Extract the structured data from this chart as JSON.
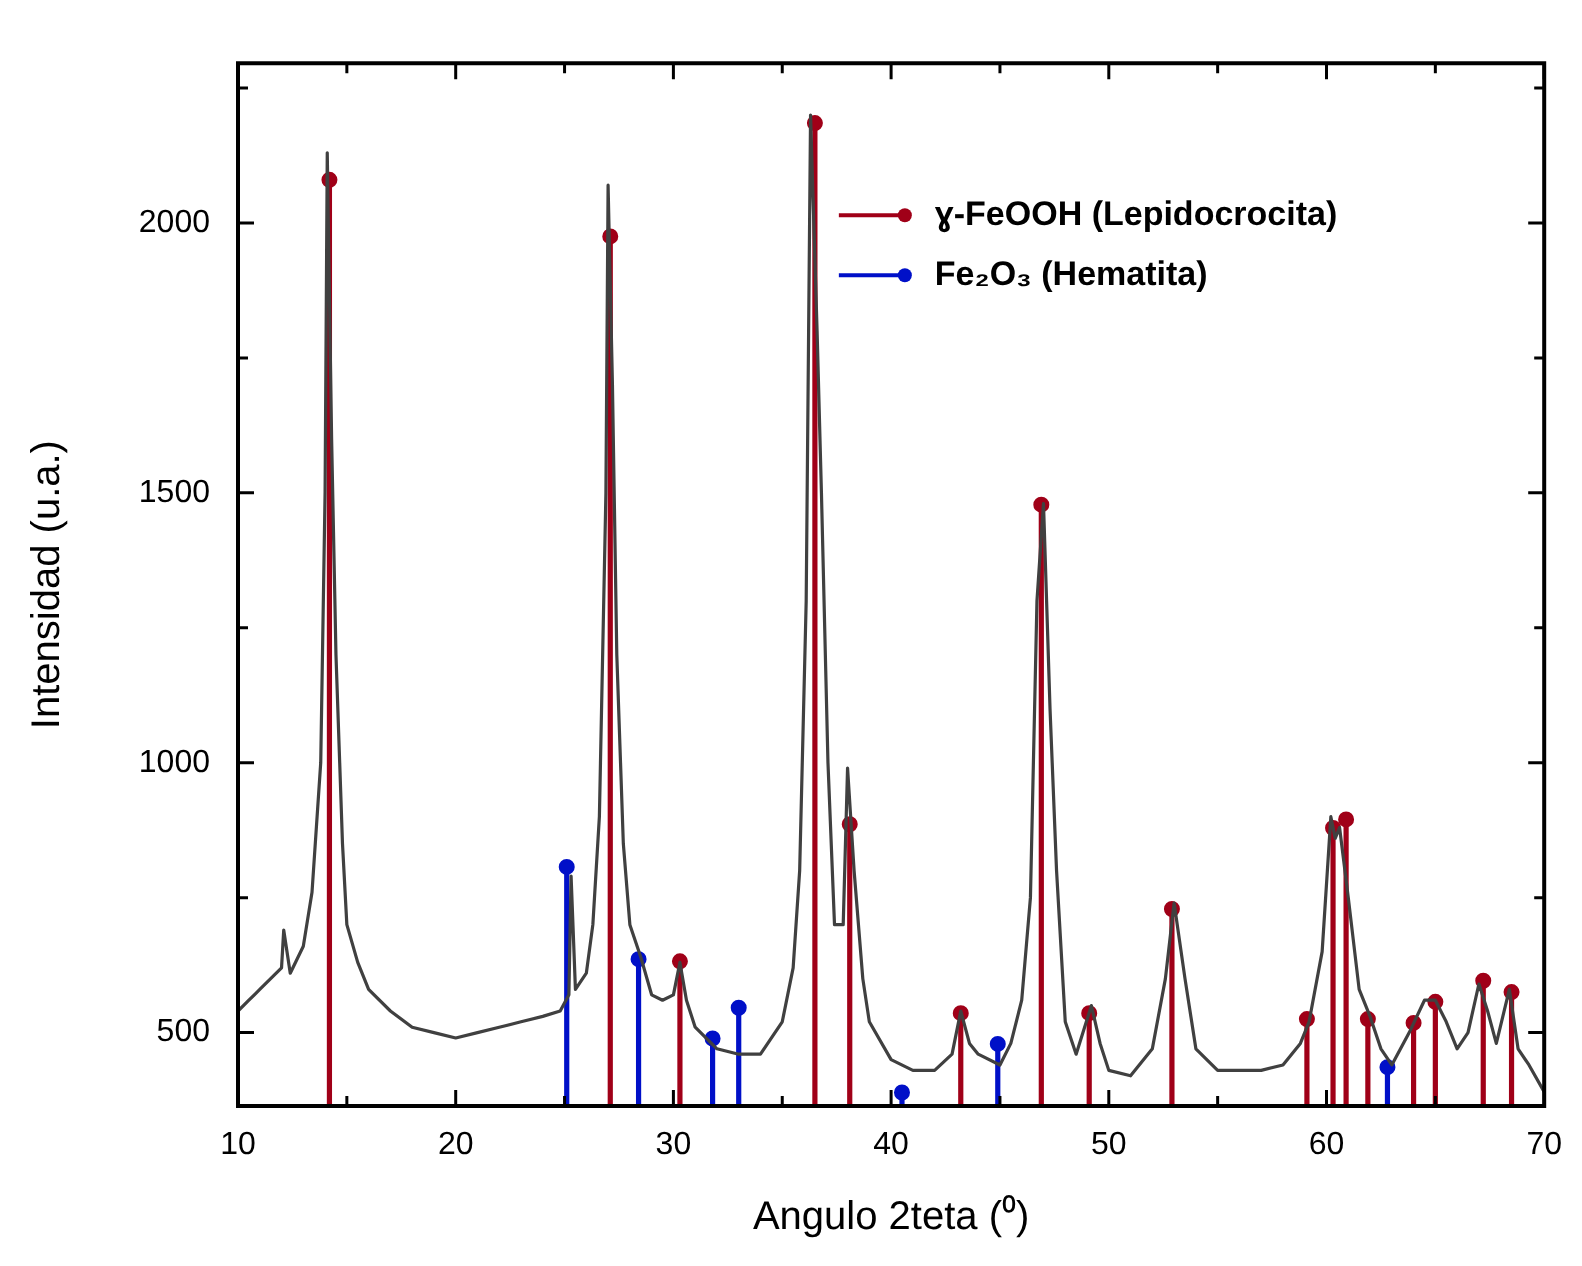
{
  "chart_data": {
    "type": "line",
    "xlabel": "Angulo 2teta (⁰)",
    "ylabel": "Intensidad (u.a.)",
    "xlim": [
      10,
      70
    ],
    "ylim": [
      364,
      2296
    ],
    "xticks": [
      10,
      {
        "value": 15,
        "label": null
      },
      20,
      {
        "value": 25,
        "label": null
      },
      30,
      {
        "value": 35,
        "label": null
      },
      40,
      {
        "value": 45,
        "label": null
      },
      50,
      {
        "value": 55,
        "label": null
      },
      60,
      {
        "value": 65,
        "label": null
      },
      70
    ],
    "yticks": [
      500,
      {
        "value": 750,
        "label": null
      },
      1000,
      {
        "value": 1250,
        "label": null
      },
      1500,
      {
        "value": 1750,
        "label": null
      },
      2000,
      {
        "value": 2250,
        "label": null
      }
    ],
    "grid": false,
    "legend": "top right",
    "series": [
      {
        "type": "line",
        "color": "#404040",
        "marker": "none",
        "x": [
          10,
          10.5,
          11,
          11.5,
          12,
          12.1,
          12.4,
          13,
          13.4,
          13.8,
          14.0,
          14.1,
          14.3,
          14.5,
          14.8,
          15,
          15.5,
          16,
          17,
          18,
          19,
          20,
          21,
          22,
          23,
          24,
          24.8,
          25.2,
          25.3,
          25.5,
          26,
          26.3,
          26.6,
          26.9,
          27.0,
          27.2,
          27.4,
          27.7,
          28,
          28.5,
          29,
          29.5,
          30,
          30.3,
          30.6,
          31,
          32,
          33,
          34,
          35,
          35.5,
          35.8,
          36.1,
          36.3,
          36.6,
          36.8,
          37.1,
          37.4,
          37.8,
          38.0,
          38.3,
          38.7,
          39,
          40,
          41,
          42,
          42.8,
          43.2,
          43.6,
          44,
          45,
          45.5,
          46,
          46.4,
          46.7,
          47.0,
          47.3,
          47.6,
          48,
          48.5,
          49.2,
          49.6,
          50,
          51,
          52,
          52.6,
          53,
          53.5,
          54,
          55,
          56,
          57,
          58,
          58.8,
          59.2,
          59.8,
          60.2,
          60.4,
          60.6,
          61,
          61.5,
          62,
          62.5,
          63,
          63.8,
          64.5,
          65,
          65.5,
          66,
          66.5,
          67,
          67.4,
          67.8,
          68.4,
          68.8,
          69.3,
          70
        ],
        "values": [
          540,
          560,
          580,
          600,
          620,
          690,
          610,
          660,
          760,
          1000,
          1500,
          2130,
          1600,
          1200,
          850,
          700,
          630,
          580,
          540,
          510,
          500,
          490,
          500,
          510,
          520,
          530,
          540,
          570,
          790,
          580,
          610,
          700,
          900,
          1500,
          2070,
          1700,
          1200,
          850,
          700,
          640,
          570,
          560,
          570,
          630,
          560,
          510,
          470,
          460,
          460,
          520,
          620,
          800,
          1300,
          2200,
          1800,
          1500,
          1000,
          700,
          700,
          990,
          800,
          600,
          520,
          450,
          430,
          430,
          460,
          540,
          480,
          460,
          440,
          480,
          560,
          750,
          1300,
          1480,
          1100,
          800,
          520,
          460,
          550,
          480,
          430,
          420,
          470,
          600,
          740,
          600,
          470,
          430,
          430,
          430,
          440,
          480,
          520,
          650,
          900,
          860,
          880,
          750,
          580,
          530,
          470,
          440,
          500,
          560,
          560,
          520,
          470,
          500,
          590,
          540,
          480,
          580,
          470,
          440,
          390
        ]
      },
      {
        "type": "lollipop",
        "name": "ɣ-FeOOH (Lepidocrocita)",
        "color": "#a00018",
        "marker": "circle",
        "x": [
          14.2,
          27.1,
          30.3,
          36.5,
          38.1,
          43.2,
          46.9,
          49.1,
          52.9,
          59.1,
          60.3,
          60.9,
          61.9,
          64.0,
          65.0,
          67.2,
          68.5
        ],
        "values": [
          2080,
          1975,
          632,
          2185,
          886,
          536,
          1478,
          536,
          729,
          525,
          879,
          895,
          525,
          518,
          557,
          596,
          575
        ]
      },
      {
        "type": "lollipop",
        "name": "Fe₂O₃ (Hematita)",
        "color": "#0010c8",
        "marker": "circle",
        "x": [
          25.1,
          28.4,
          31.8,
          33.0,
          40.5,
          44.9,
          62.8
        ],
        "values": [
          807,
          636,
          489,
          546,
          389,
          479,
          436
        ]
      }
    ]
  }
}
